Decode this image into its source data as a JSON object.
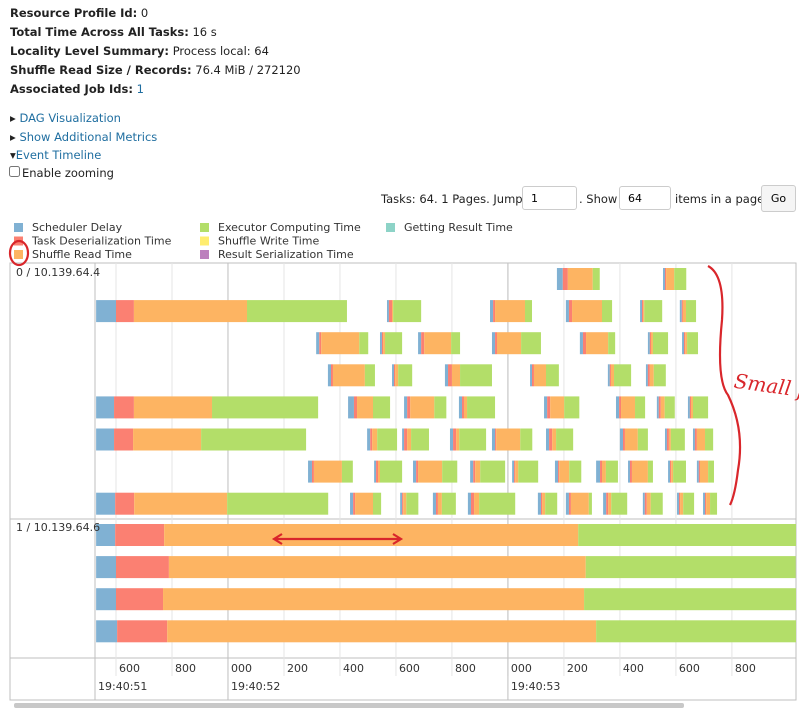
{
  "header": {
    "items": [
      {
        "label": "Resource Profile Id:",
        "value": "0"
      },
      {
        "label": "Total Time Across All Tasks:",
        "value": "16 s"
      },
      {
        "label": "Locality Level Summary:",
        "value": "Process local: 64"
      },
      {
        "label": "Shuffle Read Size / Records:",
        "value": "76.4 MiB / 272120"
      },
      {
        "label": "Associated Job Ids:",
        "value": "1"
      }
    ]
  },
  "links": [
    "DAG Visualization",
    "Show Additional Metrics",
    "Event Timeline"
  ],
  "zoom_checkbox": "Enable zooming",
  "pagination": {
    "text": "Tasks: 64. 1 Pages. Jump to",
    "page": "1",
    "show": ". Show",
    "size": "64",
    "suffix": "items in a page.",
    "button": "Go"
  },
  "timeline": {
    "legend": [
      {
        "name": "Scheduler Delay",
        "color": "#80b1d3"
      },
      {
        "name": "Task Deserialization Time",
        "color": "#fb8072"
      },
      {
        "name": "Shuffle Read Time",
        "color": "#fdb462"
      },
      {
        "name": "Executor Computing Time",
        "color": "#b3de69"
      },
      {
        "name": "Shuffle Write Time",
        "color": "#ffed6f"
      },
      {
        "name": "Result Serialization Time",
        "color": "#bc80bd"
      },
      {
        "name": "Getting Result Time",
        "color": "#8dd3c7"
      }
    ],
    "xlim": [
      525,
      3029
    ],
    "xticks": [
      {
        "value": 600,
        "label": "600"
      },
      {
        "value": 800,
        "label": "800"
      },
      {
        "value": 1000,
        "label": "000"
      },
      {
        "value": 1200,
        "label": "200"
      },
      {
        "value": 1400,
        "label": "400"
      },
      {
        "value": 1600,
        "label": "600"
      },
      {
        "value": 1800,
        "label": "800"
      },
      {
        "value": 2000,
        "label": "000"
      },
      {
        "value": 2200,
        "label": "200"
      },
      {
        "value": 2400,
        "label": "400"
      },
      {
        "value": 2600,
        "label": "600"
      },
      {
        "value": 2800,
        "label": "800"
      }
    ],
    "major_ticks": [
      {
        "value": 525,
        "label": "19:40:51"
      },
      {
        "value": 1000,
        "label": "19:40:52"
      },
      {
        "value": 2000,
        "label": "19:40:53"
      }
    ],
    "executors": [
      {
        "label": "0 / 10.139.64.4",
        "rows": [
          [
            [
              2175,
              21,
              18,
              89,
              25
            ],
            [
              2554,
              7,
              4,
              29,
              43
            ]
          ],
          [
            [
              529,
              71,
              64,
              404,
              357
            ],
            [
              1568,
              7,
              11,
              4,
              100
            ],
            [
              1936,
              11,
              7,
              107,
              25
            ],
            [
              2207,
              11,
              11,
              107,
              36
            ],
            [
              2472,
              7,
              4,
              4,
              64
            ],
            [
              2614,
              7,
              4,
              11,
              36
            ]
          ],
          [
            [
              1315,
              11,
              7,
              136,
              32
            ],
            [
              1543,
              7,
              4,
              7,
              61
            ],
            [
              1679,
              11,
              11,
              96,
              32
            ],
            [
              1943,
              11,
              7,
              86,
              71
            ],
            [
              2257,
              11,
              11,
              79,
              25
            ],
            [
              2500,
              7,
              4,
              7,
              54
            ],
            [
              2622,
              7,
              4,
              7,
              39
            ]
          ],
          [
            [
              1357,
              11,
              7,
              114,
              36
            ],
            [
              1586,
              7,
              4,
              11,
              50
            ],
            [
              1775,
              11,
              14,
              29,
              114
            ],
            [
              2079,
              7,
              7,
              43,
              46
            ],
            [
              2357,
              7,
              4,
              11,
              61
            ],
            [
              2493,
              7,
              7,
              14,
              43
            ]
          ],
          [
            [
              529,
              64,
              71,
              279,
              379
            ],
            [
              1429,
              21,
              11,
              57,
              61
            ],
            [
              1629,
              11,
              11,
              86,
              43
            ],
            [
              1825,
              11,
              7,
              11,
              100
            ],
            [
              2129,
              11,
              11,
              50,
              54
            ],
            [
              2386,
              11,
              7,
              50,
              36
            ],
            [
              2532,
              7,
              7,
              14,
              36
            ],
            [
              2643,
              7,
              4,
              7,
              54
            ]
          ],
          [
            [
              529,
              64,
              68,
              243,
              375
            ],
            [
              1497,
              11,
              7,
              18,
              71
            ],
            [
              1622,
              7,
              11,
              14,
              64
            ],
            [
              1793,
              11,
              11,
              11,
              96
            ],
            [
              1943,
              11,
              4,
              86,
              43
            ],
            [
              2136,
              11,
              11,
              14,
              61
            ],
            [
              2400,
              11,
              7,
              46,
              36
            ],
            [
              2561,
              7,
              7,
              7,
              50
            ],
            [
              2661,
              7,
              7,
              29,
              29
            ]
          ],
          [
            [
              1286,
              14,
              7,
              100,
              39
            ],
            [
              1522,
              7,
              7,
              7,
              79
            ],
            [
              1661,
              11,
              7,
              86,
              54
            ],
            [
              1865,
              11,
              7,
              18,
              89
            ],
            [
              2015,
              7,
              4,
              11,
              71
            ],
            [
              2168,
              11,
              4,
              36,
              43
            ],
            [
              2315,
              14,
              7,
              14,
              43
            ],
            [
              2429,
              7,
              7,
              57,
              18
            ],
            [
              2572,
              7,
              4,
              7,
              46
            ],
            [
              2675,
              7,
              4,
              29,
              21
            ]
          ],
          [
            [
              529,
              68,
              68,
              332,
              361
            ],
            [
              1436,
              11,
              7,
              64,
              29
            ],
            [
              1615,
              7,
              4,
              11,
              43
            ],
            [
              1732,
              11,
              7,
              14,
              50
            ],
            [
              1857,
              11,
              11,
              18,
              129
            ],
            [
              2107,
              11,
              4,
              11,
              43
            ],
            [
              2207,
              11,
              7,
              64,
              11
            ],
            [
              2340,
              11,
              7,
              11,
              57
            ],
            [
              2482,
              7,
              7,
              14,
              43
            ],
            [
              2604,
              7,
              4,
              11,
              39
            ],
            [
              2697,
              7,
              4,
              14,
              25
            ]
          ]
        ]
      },
      {
        "label": "1 / 10.139.64.6",
        "rows": [
          [
            [
              529,
              68,
              175,
              1479,
              786
            ]
          ],
          [
            [
              529,
              71,
              189,
              1489,
              750
            ]
          ],
          [
            [
              529,
              71,
              168,
              1504,
              757
            ]
          ],
          [
            [
              529,
              75,
              179,
              1532,
              714
            ]
          ]
        ]
      }
    ]
  },
  "annotation": "Small file"
}
